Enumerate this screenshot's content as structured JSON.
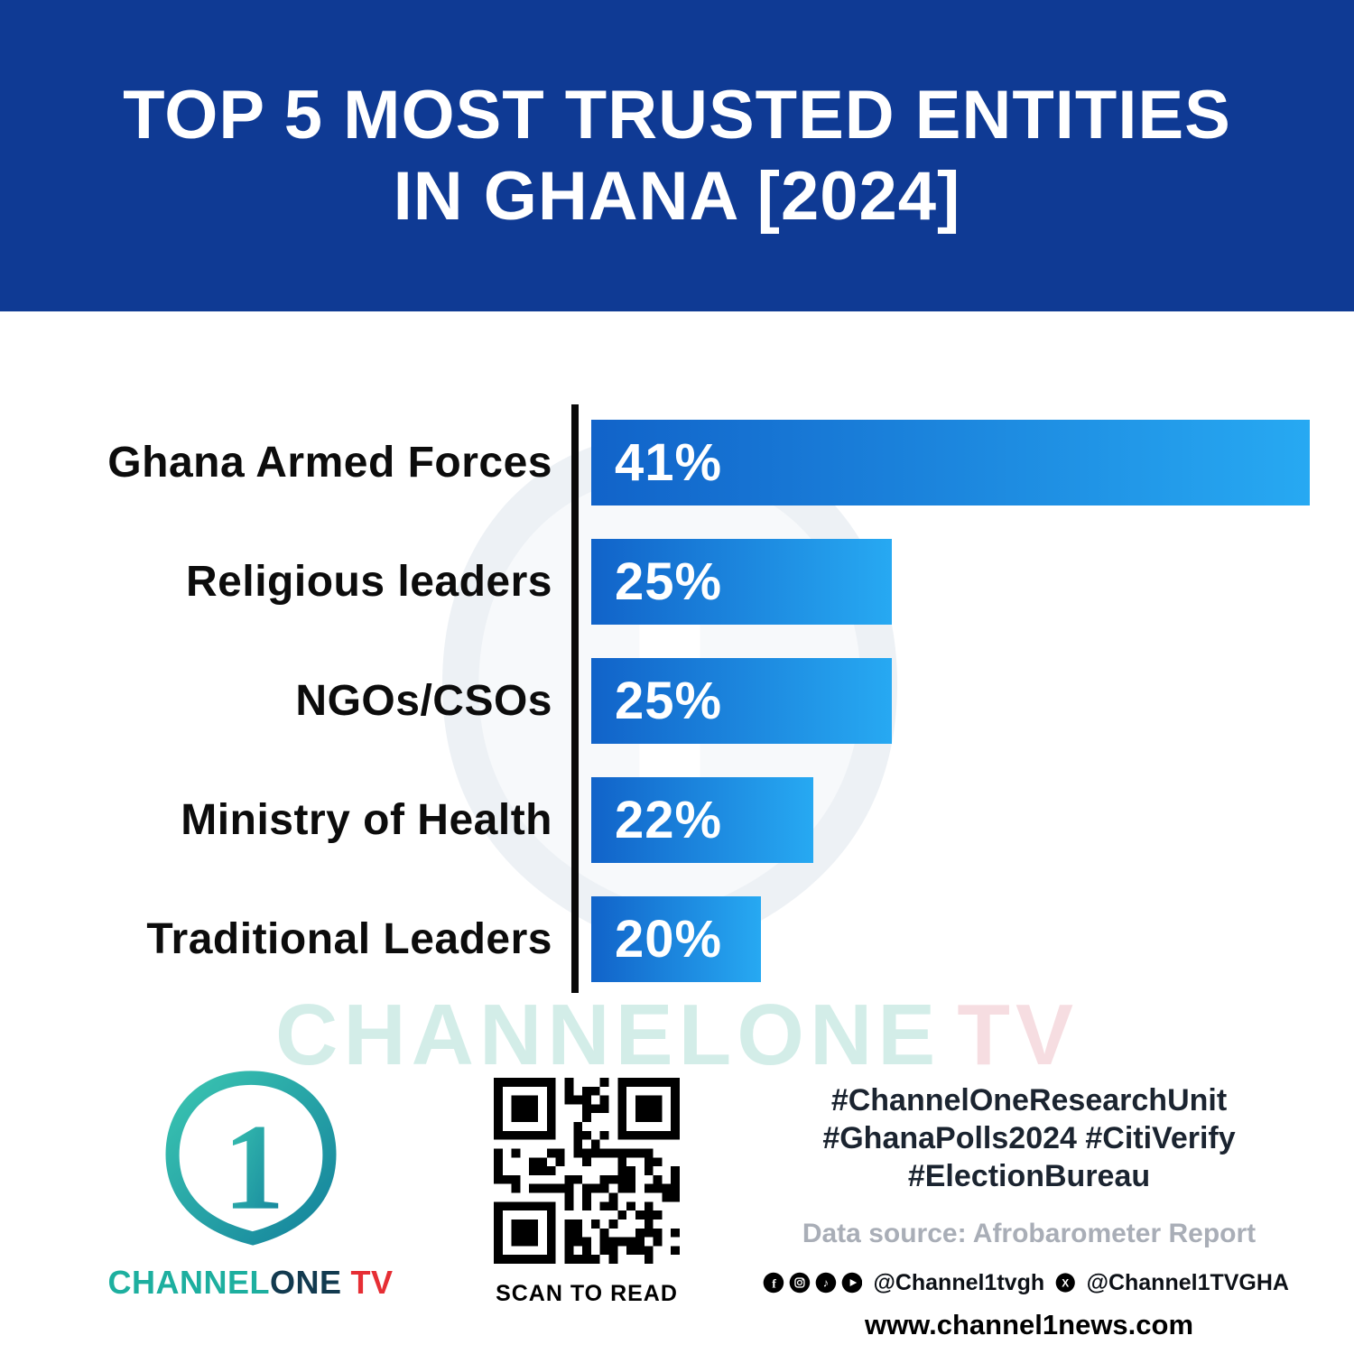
{
  "colors": {
    "header_bg": "#0f3a94",
    "axis": "#0a0a0a",
    "brand_teal": "#1daf9f",
    "brand_dark": "#123a4f",
    "brand_red": "#e62e34"
  },
  "header": {
    "title_line1": "TOP 5 MOST TRUSTED ENTITIES",
    "title_line2": "IN GHANA [2024]"
  },
  "chart_data": {
    "type": "bar",
    "orientation": "horizontal",
    "title": "Top 5 Most Trusted Entities in Ghana [2024]",
    "categories": [
      "Ghana Armed Forces",
      "Religious leaders",
      "NGOs/CSOs",
      "Ministry of Health",
      "Traditional Leaders"
    ],
    "values": [
      41,
      25,
      25,
      22,
      20
    ],
    "value_labels": [
      "41%",
      "25%",
      "25%",
      "22%",
      "20%"
    ],
    "unit": "%",
    "xlim": [
      13.5,
      41
    ],
    "bar_color_start": "#1163c9",
    "bar_color_end": "#27a9f2",
    "grid": false,
    "legend": false,
    "source": "Afrobarometer Report"
  },
  "watermark": {
    "part1": "CHANNELONE",
    "part2": "TV"
  },
  "footer": {
    "logo": {
      "digit": "1",
      "brand_channel": "CHANNEL",
      "brand_one": "ONE",
      "brand_tv": "TV"
    },
    "qr_caption": "SCAN TO READ",
    "hashtags": [
      "#ChannelOneResearchUnit",
      "#GhanaPolls2024 #CitiVerify",
      "#ElectionBureau"
    ],
    "data_source": "Data source: Afrobarometer Report",
    "handle_main": "@Channel1tvgh",
    "handle_x": "@Channel1TVGHA",
    "website": "www.channel1news.com"
  }
}
